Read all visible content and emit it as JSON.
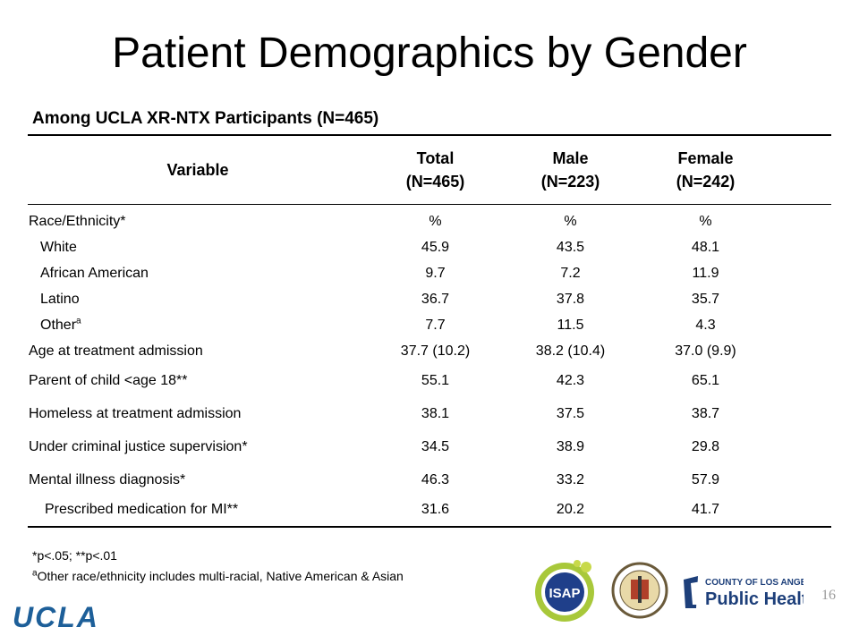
{
  "slide": {
    "title": "Patient Demographics by Gender",
    "subtitle": "Among UCLA XR-NTX Participants (N=465)",
    "page_number": "16"
  },
  "table": {
    "headers": {
      "variable": "Variable",
      "total": "Total",
      "total_n": "(N=465)",
      "male": "Male",
      "male_n": "(N=223)",
      "female": "Female",
      "female_n": "(N=242)"
    },
    "rows": [
      {
        "label": "Race/Ethnicity*",
        "total": "%",
        "male": "%",
        "female": "%"
      },
      {
        "label": "White",
        "total": "45.9",
        "male": "43.5",
        "female": "48.1"
      },
      {
        "label": "African American",
        "total": "9.7",
        "male": "7.2",
        "female": "11.9"
      },
      {
        "label": "Latino",
        "total": "36.7",
        "male": "37.8",
        "female": "35.7"
      },
      {
        "label": "Other",
        "sup": "a",
        "total": "7.7",
        "male": "11.5",
        "female": "4.3"
      },
      {
        "label": "Age at treatment admission",
        "total": "37.7 (10.2)",
        "male": "38.2 (10.4)",
        "female": "37.0 (9.9)"
      },
      {
        "label": "Parent of child <age 18**",
        "total": "55.1",
        "male": "42.3",
        "female": "65.1"
      },
      {
        "label": "Homeless at treatment admission",
        "total": "38.1",
        "male": "37.5",
        "female": "38.7"
      },
      {
        "label": "Under criminal justice supervision*",
        "total": "34.5",
        "male": "38.9",
        "female": "29.8"
      },
      {
        "label": "Mental illness diagnosis*",
        "total": "46.3",
        "male": "33.2",
        "female": "57.9"
      },
      {
        "label": "Prescribed medication for MI**",
        "total": "31.6",
        "male": "20.2",
        "female": "41.7"
      }
    ]
  },
  "footnotes": {
    "significance": "*p<.05; **p<.01",
    "sup": "a",
    "other_note": "Other race/ethnicity includes multi-racial, Native American & Asian"
  },
  "logos": {
    "ucla": "UCLA",
    "isap": "ISAP",
    "county_line": "COUNTY OF LOS ANGELES",
    "public_health": "Public Health",
    "colors": {
      "ucla_blue": "#1d5f99",
      "isap_green": "#a8c83a",
      "isap_blue": "#1f3f8a",
      "ph_navy": "#1d3f7a"
    }
  }
}
